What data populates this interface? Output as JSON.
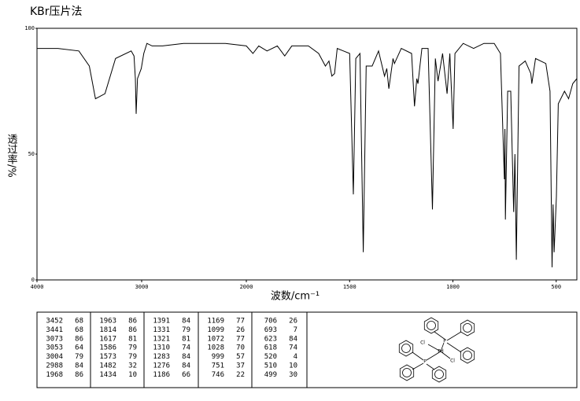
{
  "chart_data": {
    "type": "line",
    "title": "KBr压片法",
    "x_label": "波数/cm⁻¹",
    "y_label": "透过率/%",
    "x": [
      4000,
      3800,
      3600,
      3500,
      3441,
      3350,
      3250,
      3100,
      3073,
      3060,
      3053,
      3040,
      3004,
      2980,
      2950,
      2900,
      2800,
      2600,
      2400,
      2200,
      2000,
      1968,
      1940,
      1900,
      1850,
      1814,
      1780,
      1700,
      1650,
      1617,
      1600,
      1586,
      1573,
      1560,
      1530,
      1500,
      1482,
      1470,
      1450,
      1434,
      1420,
      1391,
      1360,
      1331,
      1320,
      1310,
      1290,
      1283,
      1250,
      1200,
      1186,
      1175,
      1169,
      1150,
      1120,
      1099,
      1085,
      1072,
      1050,
      1028,
      1015,
      999,
      990,
      950,
      900,
      850,
      800,
      770,
      751,
      748,
      746,
      735,
      720,
      706,
      700,
      693,
      680,
      650,
      623,
      618,
      600,
      550,
      530,
      520,
      515,
      510,
      499,
      490,
      460,
      440,
      420,
      400
    ],
    "values": [
      92,
      92,
      91,
      85,
      72,
      74,
      88,
      91,
      89,
      80,
      66,
      80,
      84,
      90,
      94,
      93,
      93,
      94,
      94,
      94,
      93,
      90,
      93,
      91,
      93,
      89,
      93,
      93,
      90,
      85,
      87,
      81,
      82,
      92,
      91,
      90,
      34,
      88,
      90,
      11,
      85,
      85,
      91,
      81,
      84,
      76,
      88,
      86,
      92,
      90,
      69,
      80,
      78,
      92,
      92,
      28,
      88,
      79,
      90,
      74,
      90,
      60,
      90,
      94,
      92,
      94,
      94,
      90,
      40,
      60,
      24,
      75,
      75,
      27,
      50,
      8,
      85,
      87,
      82,
      78,
      88,
      86,
      75,
      5,
      30,
      11,
      33,
      70,
      75,
      72,
      78,
      80
    ],
    "color": "#000000",
    "xlim": [
      4000,
      400
    ],
    "x_break": 2000,
    "xticks": [
      4000,
      3000,
      2000,
      1500,
      1000,
      500
    ],
    "ylim": [
      0,
      100
    ],
    "yticks": [
      0,
      50,
      100
    ]
  },
  "peak_table": {
    "columns": [
      [
        [
          3452,
          68
        ],
        [
          3441,
          68
        ],
        [
          3073,
          86
        ],
        [
          3053,
          64
        ],
        [
          3004,
          79
        ],
        [
          2988,
          84
        ],
        [
          1968,
          86
        ]
      ],
      [
        [
          1963,
          86
        ],
        [
          1814,
          86
        ],
        [
          1617,
          81
        ],
        [
          1586,
          79
        ],
        [
          1573,
          79
        ],
        [
          1482,
          32
        ],
        [
          1434,
          10
        ]
      ],
      [
        [
          1391,
          84
        ],
        [
          1331,
          79
        ],
        [
          1321,
          81
        ],
        [
          1310,
          74
        ],
        [
          1283,
          84
        ],
        [
          1276,
          84
        ],
        [
          1186,
          66
        ]
      ],
      [
        [
          1169,
          77
        ],
        [
          1099,
          26
        ],
        [
          1072,
          77
        ],
        [
          1028,
          70
        ],
        [
          999,
          57
        ],
        [
          751,
          37
        ],
        [
          746,
          22
        ]
      ],
      [
        [
          706,
          26
        ],
        [
          693,
          7
        ],
        [
          623,
          84
        ],
        [
          618,
          74
        ],
        [
          520,
          4
        ],
        [
          510,
          10
        ],
        [
          499,
          30
        ]
      ]
    ]
  },
  "structure": {
    "labels": [
      "Cl",
      "P",
      "Pd",
      "P",
      "Cl"
    ]
  }
}
